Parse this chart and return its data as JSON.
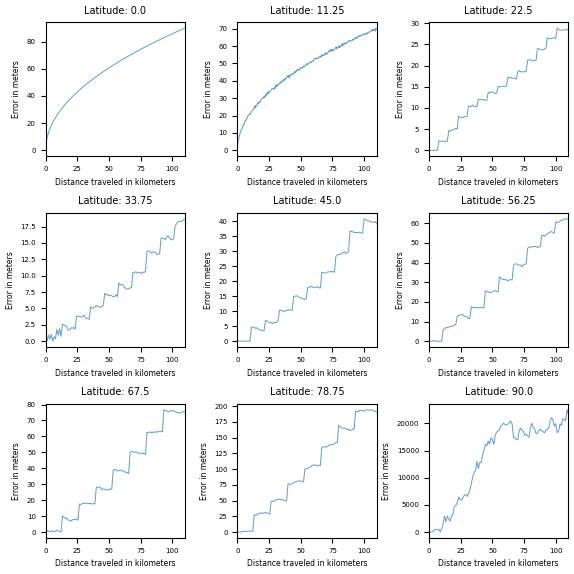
{
  "latitudes": [
    0.0,
    11.25,
    22.5,
    33.75,
    45.0,
    56.25,
    67.5,
    78.75,
    90.0
  ],
  "xlabel": "Distance traveled in kilometers",
  "ylabel": "Error in meters",
  "line_color": "#5b9bd5",
  "title_fontsize": 7,
  "axis_fontsize": 5.5,
  "tick_fontsize": 5,
  "figsize": [
    5.74,
    5.74
  ],
  "dpi": 100,
  "ylims": [
    null,
    null,
    null,
    null,
    null,
    null,
    null,
    null,
    null
  ],
  "xlim": [
    0,
    110
  ]
}
